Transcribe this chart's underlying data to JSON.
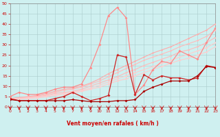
{
  "xlabel": "Vent moyen/en rafales ( km/h )",
  "xlim": [
    0,
    23
  ],
  "ylim": [
    0,
    50
  ],
  "yticks": [
    0,
    5,
    10,
    15,
    20,
    25,
    30,
    35,
    40,
    45,
    50
  ],
  "xticks": [
    0,
    1,
    2,
    3,
    4,
    5,
    6,
    7,
    8,
    9,
    10,
    11,
    12,
    13,
    14,
    15,
    16,
    17,
    18,
    19,
    20,
    21,
    22,
    23
  ],
  "bg_color": "#cff0f0",
  "grid_color": "#aacccc",
  "series": [
    {
      "x": [
        0,
        1,
        2,
        3,
        4,
        5,
        6,
        7,
        8,
        9,
        10,
        11,
        12,
        13,
        14,
        15,
        16,
        17,
        18,
        19,
        20,
        21,
        22,
        23
      ],
      "y": [
        4.0,
        4.5,
        5.0,
        5.5,
        6.5,
        7.5,
        8.5,
        9.0,
        10.0,
        11.5,
        13.5,
        16.0,
        18.0,
        20.0,
        22.0,
        24.0,
        26.0,
        27.5,
        29.0,
        31.0,
        33.0,
        35.0,
        37.0,
        40.0
      ],
      "color": "#ffaaaa",
      "lw": 0.8,
      "marker": "D",
      "ms": 1.5
    },
    {
      "x": [
        0,
        1,
        2,
        3,
        4,
        5,
        6,
        7,
        8,
        9,
        10,
        11,
        12,
        13,
        14,
        15,
        16,
        17,
        18,
        19,
        20,
        21,
        22,
        23
      ],
      "y": [
        4.0,
        4.3,
        4.8,
        5.2,
        6.0,
        7.0,
        8.0,
        8.5,
        9.5,
        11.0,
        12.5,
        14.5,
        16.5,
        18.5,
        20.5,
        22.5,
        24.0,
        25.5,
        27.0,
        29.0,
        30.5,
        32.0,
        34.0,
        37.0
      ],
      "color": "#ffbbbb",
      "lw": 0.8,
      "marker": "D",
      "ms": 1.5
    },
    {
      "x": [
        0,
        1,
        2,
        3,
        4,
        5,
        6,
        7,
        8,
        9,
        10,
        11,
        12,
        13,
        14,
        15,
        16,
        17,
        18,
        19,
        20,
        21,
        22,
        23
      ],
      "y": [
        4.0,
        4.2,
        4.5,
        5.0,
        5.5,
        6.5,
        7.0,
        7.5,
        8.5,
        10.0,
        11.5,
        13.0,
        14.5,
        16.5,
        18.0,
        20.0,
        21.5,
        23.0,
        24.5,
        26.5,
        27.5,
        29.0,
        31.0,
        33.5
      ],
      "color": "#ffbbbb",
      "lw": 0.8,
      "marker": "D",
      "ms": 1.5
    },
    {
      "x": [
        0,
        1,
        2,
        3,
        4,
        5,
        6,
        7,
        8,
        9,
        10,
        11,
        12,
        13,
        14,
        15,
        16,
        17,
        18,
        19,
        20,
        21,
        22,
        23
      ],
      "y": [
        4.0,
        4.1,
        4.4,
        4.7,
        5.2,
        6.0,
        6.5,
        7.0,
        8.0,
        9.0,
        10.5,
        12.0,
        13.5,
        15.0,
        16.5,
        18.0,
        19.5,
        21.0,
        22.5,
        24.0,
        25.5,
        27.0,
        28.5,
        31.0
      ],
      "color": "#ffcccc",
      "lw": 0.8,
      "marker": "D",
      "ms": 1.5
    },
    {
      "x": [
        0,
        1,
        2,
        3,
        4,
        5,
        6,
        7,
        8,
        9,
        10,
        11,
        12,
        13,
        14,
        15,
        16,
        17,
        18,
        19,
        20,
        21,
        22,
        23
      ],
      "y": [
        3.5,
        3.8,
        4.0,
        4.3,
        4.8,
        5.5,
        6.0,
        6.5,
        7.5,
        8.5,
        9.5,
        11.0,
        12.5,
        13.5,
        15.0,
        16.5,
        18.0,
        19.5,
        21.0,
        22.5,
        23.5,
        25.0,
        26.5,
        29.0
      ],
      "color": "#ffcccc",
      "lw": 0.8,
      "marker": "D",
      "ms": 1.5
    },
    {
      "x": [
        0,
        1,
        2,
        3,
        4,
        5,
        6,
        7,
        8,
        9,
        10,
        11,
        12,
        13,
        14,
        15,
        16,
        17,
        18,
        19,
        20,
        21,
        22,
        23
      ],
      "y": [
        5.0,
        7.0,
        6.0,
        6.0,
        7.0,
        8.5,
        9.5,
        9.5,
        11.0,
        19.0,
        30.0,
        44.0,
        48.0,
        43.0,
        6.0,
        10.5,
        18.0,
        22.0,
        21.0,
        27.0,
        25.0,
        23.0,
        31.0,
        38.0
      ],
      "color": "#ff8888",
      "lw": 0.9,
      "marker": "D",
      "ms": 2.0
    },
    {
      "x": [
        0,
        1,
        2,
        3,
        4,
        5,
        6,
        7,
        8,
        9,
        10,
        11,
        12,
        13,
        14,
        15,
        16,
        17,
        18,
        19,
        20,
        21,
        22,
        23
      ],
      "y": [
        4.0,
        3.0,
        3.0,
        3.0,
        3.0,
        4.0,
        5.0,
        7.0,
        5.0,
        3.0,
        4.0,
        5.5,
        25.0,
        24.0,
        6.0,
        15.5,
        13.0,
        15.0,
        14.0,
        14.0,
        13.0,
        14.0,
        20.0,
        19.0
      ],
      "color": "#cc2222",
      "lw": 0.9,
      "marker": "D",
      "ms": 2.0
    },
    {
      "x": [
        0,
        1,
        2,
        3,
        4,
        5,
        6,
        7,
        8,
        9,
        10,
        11,
        12,
        13,
        14,
        15,
        16,
        17,
        18,
        19,
        20,
        21,
        22,
        23
      ],
      "y": [
        3.5,
        3.0,
        3.0,
        3.0,
        3.0,
        3.0,
        3.0,
        3.5,
        3.0,
        2.5,
        2.5,
        2.5,
        3.0,
        3.0,
        3.5,
        7.5,
        9.5,
        11.0,
        12.5,
        12.5,
        12.5,
        15.0,
        19.5,
        19.0
      ],
      "color": "#aa0000",
      "lw": 0.9,
      "marker": "D",
      "ms": 2.0
    }
  ],
  "wind_arrows": {
    "color": "#cc0000",
    "directions": [
      225,
      225,
      270,
      270,
      315,
      270,
      270,
      315,
      270,
      45,
      45,
      315,
      315,
      270,
      270,
      270,
      270,
      270,
      270,
      270,
      270,
      315,
      315,
      315
    ]
  }
}
